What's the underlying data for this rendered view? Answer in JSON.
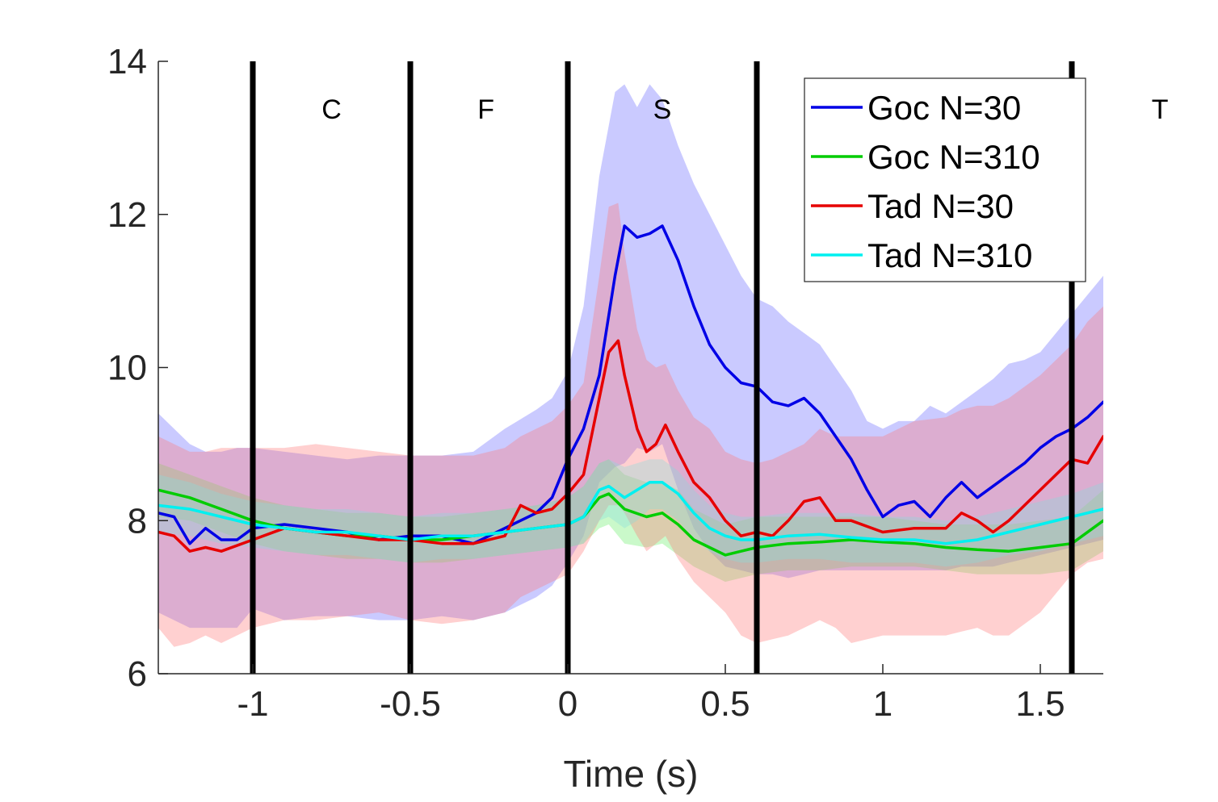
{
  "chart_data": {
    "type": "line",
    "xlabel": "Time (s)",
    "ylabel": "",
    "xlim": [
      -1.3,
      1.7
    ],
    "ylim": [
      6,
      14
    ],
    "x_ticks": [
      -1,
      -0.5,
      0,
      0.5,
      1,
      1.5
    ],
    "x_tick_labels": [
      "-1",
      "-0.5",
      "0",
      "0.5",
      "1",
      "1.5"
    ],
    "y_ticks": [
      6,
      8,
      10,
      12,
      14
    ],
    "y_tick_labels": [
      "6",
      "8",
      "10",
      "12",
      "14"
    ],
    "grid": false,
    "legend_position": "top-right",
    "vertical_lines": [
      -1,
      -0.5,
      0,
      0.6,
      1.6
    ],
    "epoch_labels": [
      {
        "text": "C",
        "x": -0.75,
        "y": 13.25
      },
      {
        "text": "F",
        "x": -0.26,
        "y": 13.25
      },
      {
        "text": "S",
        "x": 0.3,
        "y": 13.25
      },
      {
        "text": "T",
        "x": 1.88,
        "y": 13.25
      }
    ],
    "series": [
      {
        "name": "Goc N=30",
        "color": "#0000e6",
        "band_color": "#6666ff",
        "x": [
          -1.3,
          -1.25,
          -1.2,
          -1.15,
          -1.1,
          -1.05,
          -1.0,
          -0.9,
          -0.8,
          -0.7,
          -0.6,
          -0.5,
          -0.4,
          -0.3,
          -0.2,
          -0.1,
          -0.05,
          0.0,
          0.05,
          0.1,
          0.15,
          0.18,
          0.22,
          0.26,
          0.3,
          0.35,
          0.4,
          0.45,
          0.5,
          0.55,
          0.6,
          0.65,
          0.7,
          0.75,
          0.8,
          0.9,
          0.95,
          1.0,
          1.05,
          1.1,
          1.15,
          1.2,
          1.25,
          1.3,
          1.35,
          1.4,
          1.45,
          1.5,
          1.55,
          1.6,
          1.65,
          1.7
        ],
        "y": [
          8.1,
          8.05,
          7.7,
          7.9,
          7.75,
          7.75,
          7.9,
          7.95,
          7.9,
          7.85,
          7.75,
          7.8,
          7.8,
          7.7,
          7.9,
          8.1,
          8.3,
          8.8,
          9.2,
          9.9,
          11.2,
          11.85,
          11.7,
          11.75,
          11.85,
          11.4,
          10.8,
          10.3,
          10.0,
          9.8,
          9.75,
          9.55,
          9.5,
          9.6,
          9.4,
          8.8,
          8.4,
          8.05,
          8.2,
          8.25,
          8.05,
          8.3,
          8.5,
          8.3,
          8.45,
          8.6,
          8.75,
          8.95,
          9.1,
          9.2,
          9.35,
          9.55
        ],
        "upper": [
          9.4,
          9.2,
          9.0,
          8.9,
          8.9,
          8.95,
          8.95,
          8.9,
          8.85,
          8.8,
          8.85,
          8.85,
          8.85,
          8.9,
          9.2,
          9.45,
          9.6,
          9.95,
          10.8,
          12.5,
          13.6,
          13.7,
          13.4,
          13.7,
          13.5,
          12.9,
          12.4,
          12.0,
          11.6,
          11.2,
          10.9,
          10.8,
          10.6,
          10.45,
          10.3,
          9.7,
          9.3,
          9.2,
          9.3,
          9.3,
          9.5,
          9.4,
          9.55,
          9.7,
          9.85,
          10.05,
          10.1,
          10.2,
          10.45,
          10.7,
          10.95,
          11.2
        ],
        "lower": [
          6.8,
          6.7,
          6.6,
          6.6,
          6.6,
          6.6,
          6.85,
          6.7,
          6.75,
          6.75,
          6.7,
          6.7,
          6.75,
          6.7,
          6.8,
          7.0,
          7.15,
          7.45,
          7.8,
          8.5,
          8.7,
          8.75,
          8.95,
          8.9,
          9.0,
          8.4,
          7.9,
          7.6,
          7.4,
          7.35,
          7.3,
          7.3,
          7.25,
          7.3,
          7.35,
          7.35,
          7.35,
          7.35,
          7.35,
          7.35,
          7.35,
          7.35,
          7.4,
          7.4,
          7.4,
          7.45,
          7.5,
          7.55,
          7.6,
          7.65,
          7.7,
          7.75
        ]
      },
      {
        "name": "Goc N=310",
        "color": "#00cc00",
        "band_color": "#66ee66",
        "x": [
          -1.3,
          -1.2,
          -1.1,
          -1.0,
          -0.9,
          -0.8,
          -0.7,
          -0.6,
          -0.5,
          -0.4,
          -0.3,
          -0.2,
          -0.1,
          0.0,
          0.05,
          0.1,
          0.13,
          0.18,
          0.25,
          0.3,
          0.35,
          0.4,
          0.45,
          0.5,
          0.55,
          0.6,
          0.7,
          0.8,
          0.9,
          1.0,
          1.1,
          1.2,
          1.3,
          1.4,
          1.5,
          1.6,
          1.7
        ],
        "y": [
          8.4,
          8.3,
          8.15,
          8.0,
          7.9,
          7.85,
          7.8,
          7.8,
          7.75,
          7.75,
          7.8,
          7.85,
          7.9,
          7.95,
          8.05,
          8.3,
          8.35,
          8.15,
          8.05,
          8.1,
          7.95,
          7.75,
          7.65,
          7.55,
          7.6,
          7.65,
          7.7,
          7.72,
          7.75,
          7.72,
          7.7,
          7.65,
          7.62,
          7.6,
          7.65,
          7.7,
          8.0
        ],
        "upper": [
          8.75,
          8.6,
          8.45,
          8.3,
          8.2,
          8.15,
          8.1,
          8.1,
          8.05,
          8.05,
          8.1,
          8.15,
          8.2,
          8.3,
          8.45,
          8.75,
          8.8,
          8.6,
          8.5,
          8.5,
          8.4,
          8.15,
          8.05,
          7.95,
          8.0,
          8.05,
          8.05,
          8.05,
          8.05,
          8.05,
          8.0,
          7.95,
          7.95,
          7.95,
          8.0,
          8.05,
          8.4
        ],
        "lower": [
          8.05,
          8.0,
          7.85,
          7.7,
          7.6,
          7.55,
          7.5,
          7.5,
          7.45,
          7.45,
          7.5,
          7.55,
          7.6,
          7.65,
          7.7,
          7.9,
          7.95,
          7.7,
          7.65,
          7.7,
          7.55,
          7.4,
          7.3,
          7.2,
          7.25,
          7.3,
          7.35,
          7.35,
          7.4,
          7.4,
          7.4,
          7.35,
          7.3,
          7.3,
          7.3,
          7.35,
          7.6
        ]
      },
      {
        "name": "Tad N=30",
        "color": "#e60000",
        "band_color": "#ff7777",
        "x": [
          -1.3,
          -1.25,
          -1.2,
          -1.15,
          -1.1,
          -1.0,
          -0.9,
          -0.8,
          -0.7,
          -0.6,
          -0.5,
          -0.4,
          -0.3,
          -0.2,
          -0.15,
          -0.1,
          -0.05,
          0.0,
          0.05,
          0.1,
          0.13,
          0.16,
          0.18,
          0.22,
          0.25,
          0.28,
          0.31,
          0.35,
          0.4,
          0.45,
          0.5,
          0.55,
          0.6,
          0.65,
          0.7,
          0.75,
          0.8,
          0.85,
          0.9,
          1.0,
          1.1,
          1.2,
          1.25,
          1.3,
          1.35,
          1.4,
          1.5,
          1.6,
          1.65,
          1.7
        ],
        "y": [
          7.85,
          7.8,
          7.6,
          7.65,
          7.6,
          7.75,
          7.9,
          7.85,
          7.8,
          7.75,
          7.75,
          7.7,
          7.7,
          7.8,
          8.2,
          8.1,
          8.15,
          8.35,
          8.6,
          9.6,
          10.2,
          10.35,
          9.9,
          9.2,
          8.9,
          9.0,
          9.25,
          8.9,
          8.5,
          8.3,
          8.0,
          7.8,
          7.85,
          7.8,
          8.0,
          8.25,
          8.3,
          8.0,
          8.0,
          7.85,
          7.9,
          7.9,
          8.1,
          8.0,
          7.85,
          8.0,
          8.4,
          8.8,
          8.75,
          9.1
        ],
        "upper": [
          9.1,
          9.0,
          8.9,
          8.9,
          8.95,
          8.95,
          8.95,
          9.0,
          8.95,
          8.9,
          8.85,
          8.85,
          8.85,
          8.95,
          9.1,
          9.2,
          9.3,
          9.5,
          9.8,
          11.2,
          12.1,
          12.15,
          11.5,
          10.5,
          10.1,
          10.0,
          10.05,
          9.7,
          9.35,
          9.2,
          8.9,
          8.8,
          8.75,
          8.8,
          8.9,
          9.0,
          9.2,
          9.1,
          9.1,
          9.1,
          9.3,
          9.35,
          9.45,
          9.5,
          9.5,
          9.6,
          9.9,
          10.3,
          10.6,
          10.8
        ],
        "lower": [
          6.6,
          6.35,
          6.4,
          6.5,
          6.4,
          6.6,
          6.7,
          6.7,
          6.75,
          6.8,
          6.7,
          6.65,
          6.7,
          6.8,
          7.0,
          7.1,
          7.2,
          7.3,
          7.6,
          8.0,
          8.2,
          8.2,
          8.1,
          7.8,
          7.6,
          7.7,
          7.8,
          7.5,
          7.2,
          7.0,
          6.8,
          6.5,
          6.4,
          6.45,
          6.5,
          6.6,
          6.7,
          6.6,
          6.4,
          6.5,
          6.5,
          6.5,
          6.55,
          6.6,
          6.5,
          6.5,
          6.8,
          7.3,
          7.45,
          7.5
        ]
      },
      {
        "name": "Tad N=310",
        "color": "#00f0f0",
        "band_color": "#88dddd",
        "x": [
          -1.3,
          -1.2,
          -1.1,
          -1.0,
          -0.9,
          -0.8,
          -0.7,
          -0.6,
          -0.5,
          -0.4,
          -0.3,
          -0.2,
          -0.1,
          0.0,
          0.05,
          0.1,
          0.13,
          0.18,
          0.22,
          0.26,
          0.3,
          0.35,
          0.4,
          0.45,
          0.5,
          0.55,
          0.6,
          0.7,
          0.8,
          0.9,
          1.0,
          1.1,
          1.2,
          1.3,
          1.4,
          1.5,
          1.6,
          1.7
        ],
        "y": [
          8.2,
          8.15,
          8.05,
          7.95,
          7.9,
          7.85,
          7.85,
          7.8,
          7.75,
          7.8,
          7.8,
          7.85,
          7.9,
          7.95,
          8.05,
          8.4,
          8.45,
          8.3,
          8.4,
          8.5,
          8.5,
          8.35,
          8.1,
          7.9,
          7.8,
          7.75,
          7.75,
          7.8,
          7.82,
          7.78,
          7.75,
          7.75,
          7.7,
          7.75,
          7.85,
          7.95,
          8.05,
          8.15
        ],
        "upper": [
          8.6,
          8.5,
          8.35,
          8.25,
          8.2,
          8.15,
          8.15,
          8.1,
          8.05,
          8.1,
          8.1,
          8.15,
          8.2,
          8.3,
          8.45,
          8.75,
          8.8,
          8.7,
          8.75,
          8.8,
          8.8,
          8.65,
          8.4,
          8.2,
          8.1,
          8.05,
          8.05,
          8.1,
          8.1,
          8.1,
          8.05,
          8.05,
          8.0,
          8.05,
          8.15,
          8.25,
          8.35,
          8.5
        ],
        "lower": [
          7.85,
          7.8,
          7.7,
          7.65,
          7.6,
          7.55,
          7.55,
          7.5,
          7.45,
          7.5,
          7.5,
          7.55,
          7.6,
          7.65,
          7.7,
          8.0,
          8.05,
          7.9,
          8.0,
          8.15,
          8.15,
          8.0,
          7.75,
          7.6,
          7.5,
          7.45,
          7.45,
          7.5,
          7.5,
          7.45,
          7.45,
          7.45,
          7.4,
          7.45,
          7.55,
          7.6,
          7.7,
          7.8
        ]
      }
    ]
  }
}
